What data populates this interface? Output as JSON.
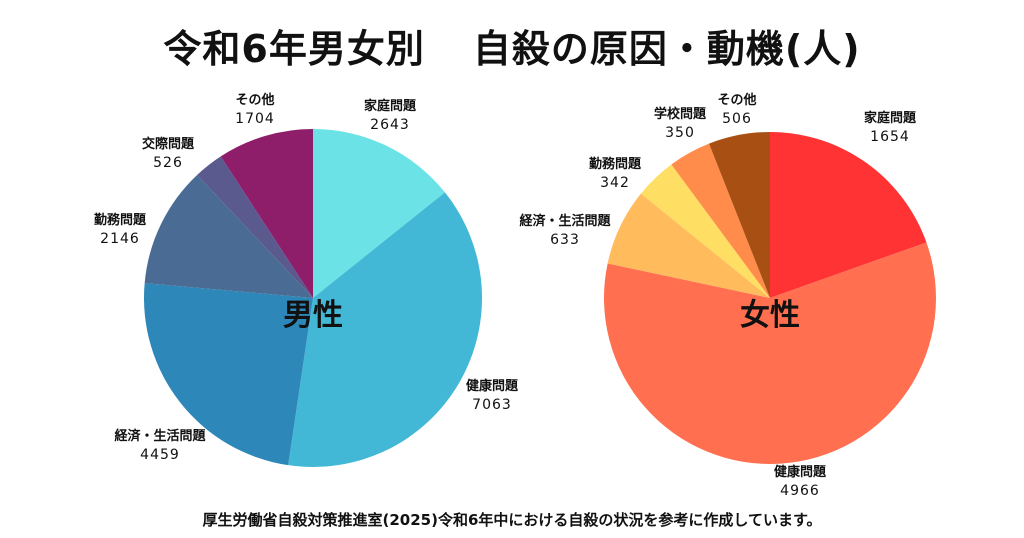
{
  "title_left": "令和6年男女別",
  "title_right": "自殺の原因・動機(人)",
  "footer": "厚生労働省自殺対策推進室(2025)令和6年中における自殺の状況を参考に作成しています。",
  "chart_data": [
    {
      "type": "pie",
      "center_label": "男性",
      "categories": [
        "家庭問題",
        "健康問題",
        "経済・生活問題",
        "勤務問題",
        "交際問題",
        "その他"
      ],
      "values": [
        2643,
        7063,
        4459,
        2146,
        526,
        1704
      ],
      "colors": [
        "#6BE3E6",
        "#43B8D6",
        "#2D87B8",
        "#4A6B93",
        "#5A5A8F",
        "#8E1E6A"
      ]
    },
    {
      "type": "pie",
      "center_label": "女性",
      "categories": [
        "家庭問題",
        "健康問題",
        "経済・生活問題",
        "勤務問題",
        "学校問題",
        "その他"
      ],
      "values": [
        1654,
        4966,
        633,
        342,
        350,
        506
      ],
      "colors": [
        "#FF3333",
        "#FF6F50",
        "#FFBB5C",
        "#FFDF63",
        "#FF8C4A",
        "#A85014"
      ]
    }
  ]
}
